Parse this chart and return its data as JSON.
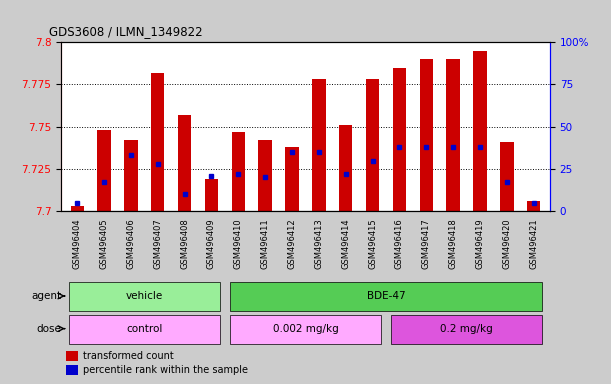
{
  "title": "GDS3608 / ILMN_1349822",
  "samples": [
    "GSM496404",
    "GSM496405",
    "GSM496406",
    "GSM496407",
    "GSM496408",
    "GSM496409",
    "GSM496410",
    "GSM496411",
    "GSM496412",
    "GSM496413",
    "GSM496414",
    "GSM496415",
    "GSM496416",
    "GSM496417",
    "GSM496418",
    "GSM496419",
    "GSM496420",
    "GSM496421"
  ],
  "transformed_count": [
    7.703,
    7.748,
    7.742,
    7.782,
    7.757,
    7.719,
    7.747,
    7.742,
    7.738,
    7.778,
    7.751,
    7.778,
    7.785,
    7.79,
    7.79,
    7.795,
    7.741,
    7.706
  ],
  "percentile_rank": [
    5,
    17,
    33,
    28,
    10,
    21,
    22,
    20,
    35,
    35,
    22,
    30,
    38,
    38,
    38,
    38,
    17,
    5
  ],
  "bar_color": "#cc0000",
  "marker_color": "#0000cc",
  "ylim_left": [
    7.7,
    7.8
  ],
  "ylim_right": [
    0,
    100
  ],
  "yticks_left": [
    7.7,
    7.725,
    7.75,
    7.775,
    7.8
  ],
  "yticks_right": [
    0,
    25,
    50,
    75,
    100
  ],
  "grid_values": [
    7.725,
    7.75,
    7.775
  ],
  "bar_width": 0.5,
  "agent_groups": [
    {
      "label": "vehicle",
      "start": 0,
      "end": 6,
      "color": "#99ee99"
    },
    {
      "label": "BDE-47",
      "start": 6,
      "end": 18,
      "color": "#55cc55"
    }
  ],
  "dose_groups": [
    {
      "label": "control",
      "start": 0,
      "end": 6,
      "color": "#ffaaff"
    },
    {
      "label": "0.002 mg/kg",
      "start": 6,
      "end": 12,
      "color": "#ffaaff"
    },
    {
      "label": "0.2 mg/kg",
      "start": 12,
      "end": 18,
      "color": "#dd55dd"
    }
  ],
  "agent_label": "agent",
  "dose_label": "dose",
  "legend_red": "transformed count",
  "legend_blue": "percentile rank within the sample",
  "bg_color": "#cccccc",
  "plot_bg": "#ffffff",
  "tick_area_color": "#cccccc"
}
